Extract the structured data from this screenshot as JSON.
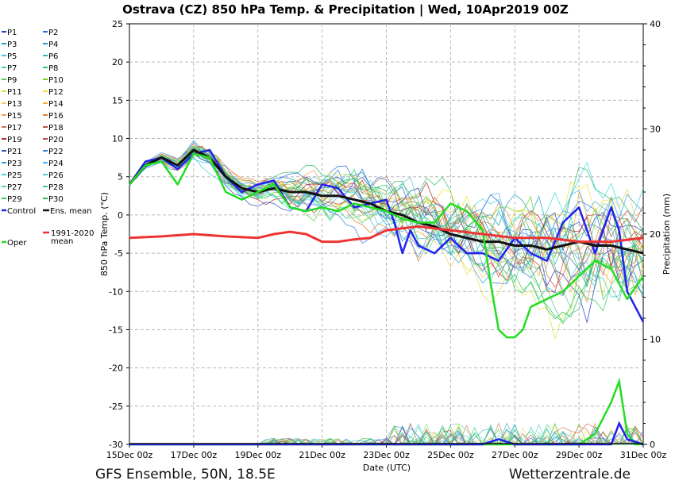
{
  "chart_data": {
    "type": "line",
    "title": "Ostrava  (CZ)  850 hPa Temp. & Precipitation | Wed, 10Apr2019 00Z",
    "xlabel": "Date (UTC)",
    "ylabel": "850 hPa Temp. (°C)",
    "y2label": "Precipitation (mm)",
    "ylim": [
      -30,
      25
    ],
    "y2lim": [
      0,
      40
    ],
    "yticks": [
      25,
      20,
      15,
      10,
      5,
      0,
      -5,
      -10,
      -15,
      -20,
      -25,
      -30
    ],
    "y2ticks": [
      40,
      30,
      20,
      10,
      0
    ],
    "x_range_days": [
      0,
      16
    ],
    "xticks": [
      {
        "day": 0,
        "label": "15Dec 00z"
      },
      {
        "day": 2,
        "label": "17Dec 00z"
      },
      {
        "day": 4,
        "label": "19Dec 00z"
      },
      {
        "day": 6,
        "label": "21Dec 00z"
      },
      {
        "day": 8,
        "label": "23Dec 00z"
      },
      {
        "day": 10,
        "label": "25Dec 00z"
      },
      {
        "day": 12,
        "label": "27Dec 00z"
      },
      {
        "day": 14,
        "label": "29Dec 00z"
      },
      {
        "day": 16,
        "label": "31Dec 00z"
      }
    ],
    "grid": true,
    "legend_position": "left",
    "members_legend": [
      "P1",
      "P2",
      "P3",
      "P4",
      "P5",
      "P6",
      "P7",
      "P8",
      "P9",
      "P10",
      "P11",
      "P12",
      "P13",
      "P14",
      "P15",
      "P16",
      "P17",
      "P18",
      "P19",
      "P20",
      "P21",
      "P22",
      "P23",
      "P24",
      "P25",
      "P26",
      "P27",
      "P28",
      "P29",
      "P30"
    ],
    "member_colors": [
      "#1f3fbf",
      "#2b6fe0",
      "#20a0c0",
      "#3090d0",
      "#40c8d8",
      "#30b8b0",
      "#40d0a0",
      "#30c070",
      "#50d040",
      "#70d020",
      "#e0e040",
      "#f0e030",
      "#f0d060",
      "#f0b040",
      "#f0a050",
      "#e08030",
      "#d07050",
      "#c05040",
      "#b03030",
      "#c04848",
      "#3050c0",
      "#4080e0",
      "#3fa0e0",
      "#50b0f0",
      "#40d8e8",
      "#50c8c8",
      "#60d890",
      "#40c880",
      "#30d050",
      "#20c040"
    ],
    "member_count": 30,
    "member_spread_estimate": [
      {
        "day": 0,
        "low": 4,
        "high": 4.5
      },
      {
        "day": 1.5,
        "low": 6,
        "high": 8
      },
      {
        "day": 2.5,
        "low": 7,
        "high": 10
      },
      {
        "day": 4,
        "low": 2,
        "high": 5
      },
      {
        "day": 6,
        "low": -1,
        "high": 6
      },
      {
        "day": 8,
        "low": -4,
        "high": 5
      },
      {
        "day": 10,
        "low": -8,
        "high": 4
      },
      {
        "day": 12,
        "low": -10,
        "high": 3
      },
      {
        "day": 14,
        "low": -13,
        "high": 8
      },
      {
        "day": 16,
        "low": -14,
        "high": 4
      }
    ],
    "series": [
      {
        "name": "Control",
        "color": "#2222ee",
        "days": [
          0,
          0.5,
          1,
          1.5,
          2,
          2.5,
          3,
          3.5,
          4,
          4.5,
          5,
          5.5,
          6,
          6.5,
          7,
          7.5,
          8,
          8.25,
          8.5,
          8.75,
          9,
          9.5,
          10,
          10.5,
          11,
          11.5,
          12,
          12.5,
          13,
          13.5,
          14,
          14.5,
          15,
          15.25,
          15.5,
          16
        ],
        "values": [
          4,
          7,
          7.5,
          6,
          8,
          8.5,
          5,
          3,
          4,
          4.5,
          1,
          0.5,
          4,
          3.5,
          1,
          1.5,
          2,
          -1,
          -5,
          -2,
          -4,
          -5,
          -3,
          -5,
          -5,
          -6,
          -3,
          -5,
          -6,
          -1,
          1,
          -5,
          1,
          -2,
          -10,
          -14
        ]
      },
      {
        "name": "Ens. mean",
        "color": "#111111",
        "days": [
          0,
          0.5,
          1,
          1.5,
          2,
          2.5,
          3,
          3.5,
          4,
          4.5,
          5,
          5.5,
          6,
          6.5,
          7,
          7.5,
          8,
          8.5,
          9,
          9.5,
          10,
          10.5,
          11,
          11.5,
          12,
          12.5,
          13,
          13.5,
          14,
          14.5,
          15,
          15.5,
          16
        ],
        "values": [
          4,
          6.5,
          7.5,
          6.5,
          8.5,
          7.5,
          5,
          3.5,
          3,
          3.5,
          3,
          3,
          2.5,
          2.5,
          2,
          1.5,
          0.5,
          0,
          -1,
          -1.5,
          -2.5,
          -3,
          -3.5,
          -3.5,
          -4,
          -4,
          -4.5,
          -4,
          -3.5,
          -4,
          -4,
          -4.5,
          -5
        ]
      },
      {
        "name": "Oper",
        "color": "#22dd22",
        "days": [
          0,
          0.5,
          1,
          1.5,
          2,
          2.5,
          3,
          3.5,
          4,
          4.5,
          5,
          5.5,
          6,
          6.5,
          7,
          7.5,
          8,
          8.5,
          9,
          9.5,
          10,
          10.5,
          11,
          11.25,
          11.5,
          11.75,
          12,
          12.25,
          12.5,
          13,
          13.5,
          14,
          14.5,
          15,
          15.5,
          16
        ],
        "values": [
          4,
          6.5,
          7,
          4,
          8,
          7.5,
          3,
          2,
          3,
          4,
          1,
          0.5,
          1,
          0.5,
          1.5,
          1,
          0.5,
          -0.5,
          -1,
          -1,
          1.5,
          0.5,
          -2,
          -9,
          -15,
          -16,
          -16,
          -15,
          -12,
          -11,
          -10,
          -8,
          -6,
          -7,
          -11,
          -8
        ]
      },
      {
        "name": "1991-2020 mean",
        "color": "#ee3333",
        "days": [
          0,
          1,
          2,
          3,
          4,
          4.5,
          5,
          5.5,
          6,
          6.5,
          7,
          7.5,
          8,
          9,
          10,
          11,
          12,
          13,
          14,
          15,
          16
        ],
        "values": [
          -3,
          -2.8,
          -2.5,
          -2.8,
          -3,
          -2.5,
          -2.2,
          -2.5,
          -3.5,
          -3.5,
          -3.2,
          -3,
          -2,
          -1.5,
          -2,
          -2.5,
          -3,
          -3,
          -3.5,
          -3.5,
          -3
        ]
      }
    ],
    "precipitation_series": [
      {
        "name": "Oper precip",
        "color": "#22dd22",
        "days": [
          0,
          10,
          11,
          12,
          13,
          13.5,
          14,
          14.5,
          15,
          15.25,
          15.5,
          15.75,
          16
        ],
        "values": [
          0,
          0,
          0,
          0,
          0,
          0,
          0,
          1,
          4,
          6,
          1,
          0,
          0
        ]
      },
      {
        "name": "Control precip",
        "color": "#2222ee",
        "days": [
          0,
          11,
          11.5,
          12,
          13,
          14,
          15,
          15.25,
          15.5,
          16
        ],
        "values": [
          0,
          0,
          0.5,
          0,
          0,
          0,
          0,
          2,
          0.5,
          0
        ]
      }
    ]
  },
  "legend": {
    "entries": [
      "P1",
      "P2",
      "P3",
      "P4",
      "P5",
      "P6",
      "P7",
      "P8",
      "P9",
      "P10",
      "P11",
      "P12",
      "P13",
      "P14",
      "P15",
      "P16",
      "P17",
      "P18",
      "P19",
      "P20",
      "P21",
      "P22",
      "P23",
      "P24",
      "P25",
      "P26",
      "P27",
      "P28",
      "P29",
      "P30",
      "Control",
      "Ens. mean",
      "Oper"
    ],
    "clim_label_line1": "1991-2020",
    "clim_label_line2": "mean"
  },
  "footer": {
    "left": "GFS Ensemble, 50N, 18.5E",
    "right": "Wetterzentrale.de"
  }
}
